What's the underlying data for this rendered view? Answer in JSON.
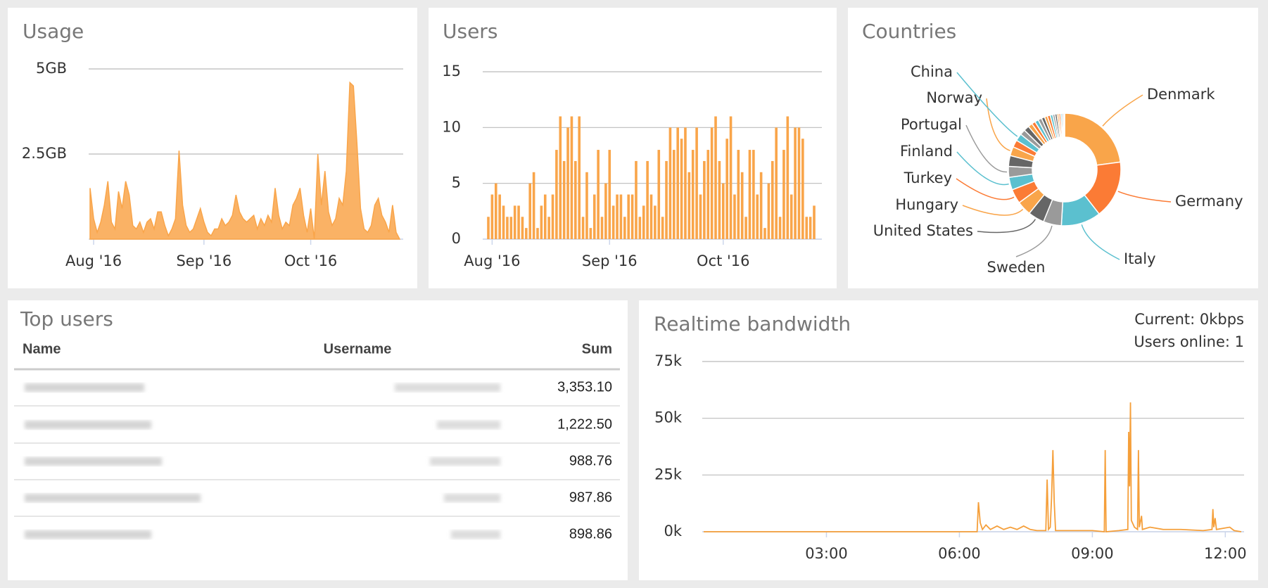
{
  "chart_data": [
    {
      "type": "area",
      "title": "Usage",
      "color": "#f9a54a",
      "grid": true,
      "values": [
        1.5,
        0.6,
        0.2,
        0.5,
        1.0,
        1.7,
        0.5,
        0.3,
        1.4,
        0.9,
        1.7,
        1.3,
        0.4,
        0.3,
        0.5,
        0.2,
        0.5,
        0.6,
        0.3,
        0.8,
        0.8,
        0.4,
        0.1,
        0.3,
        0.6,
        2.6,
        1.0,
        0.4,
        0.2,
        0.3,
        0.6,
        0.9,
        0.5,
        0.2,
        0.1,
        0.3,
        0.3,
        0.6,
        0.4,
        0.5,
        0.7,
        1.3,
        0.8,
        0.6,
        0.5,
        0.6,
        0.7,
        0.3,
        0.6,
        0.4,
        0.7,
        0.5,
        1.5,
        0.7,
        0.3,
        0.5,
        0.4,
        1.0,
        1.2,
        1.5,
        0.7,
        0.2,
        0.9,
        0.0,
        2.5,
        1.0,
        2.0,
        0.8,
        0.4,
        0.6,
        1.2,
        1.0,
        2.0,
        4.6,
        4.5,
        2.8,
        0.9,
        0.3,
        0.2,
        0.4,
        1.0,
        1.2,
        0.7,
        0.5,
        0.2,
        1.0,
        0.2,
        0.0
      ],
      "xlim": [
        0,
        87
      ],
      "xticks": [
        {
          "value": 1,
          "label": "Aug '16"
        },
        {
          "value": 32,
          "label": "Sep '16"
        },
        {
          "value": 62,
          "label": "Oct '16"
        }
      ],
      "ylim": [
        0,
        5
      ],
      "yticks": [
        {
          "value": 2.5,
          "label": "2.5GB"
        },
        {
          "value": 5,
          "label": "5GB"
        }
      ]
    },
    {
      "type": "bar",
      "title": "Users",
      "color": "#f9a54a",
      "grid": true,
      "values": [
        2,
        4,
        5,
        4,
        3,
        2,
        2,
        3,
        3,
        2,
        1,
        5,
        6,
        1,
        3,
        4,
        2,
        4,
        8,
        11,
        7,
        10,
        11,
        7,
        11,
        2,
        6,
        1,
        4,
        8,
        2,
        5,
        8,
        3,
        4,
        4,
        2,
        4,
        4,
        7,
        2,
        3,
        7,
        4,
        3,
        8,
        2,
        7,
        10,
        8,
        10,
        9,
        10,
        6,
        8,
        10,
        4,
        7,
        8,
        10,
        11,
        7,
        5,
        9,
        11,
        4,
        8,
        6,
        2,
        8,
        8,
        4,
        6,
        1,
        5,
        7,
        10,
        2,
        8,
        11,
        4,
        10,
        10,
        9,
        2,
        2,
        3
      ],
      "xlim": [
        0,
        86
      ],
      "xticks": [
        {
          "value": 1,
          "label": "Aug '16"
        },
        {
          "value": 32,
          "label": "Sep '16"
        },
        {
          "value": 62,
          "label": "Oct '16"
        }
      ],
      "ylim": [
        0,
        15
      ],
      "yticks": [
        0,
        5,
        10,
        15
      ]
    },
    {
      "type": "donut",
      "title": "Countries",
      "colors": [
        "#f9a54a",
        "#fb7b35",
        "#5bc0cf",
        "#9a9a9a",
        "#666666"
      ],
      "categories": [
        "Denmark",
        "Germany",
        "Italy",
        "Sweden",
        "United States",
        "Hungary",
        "Turkey",
        "Finland",
        "Portugal",
        null,
        "Norway",
        null,
        "China",
        null,
        null,
        null,
        null,
        null,
        null,
        null,
        null,
        null,
        null,
        null,
        null,
        null,
        null,
        null,
        null,
        null
      ],
      "values": [
        22,
        16,
        11,
        5,
        4.5,
        4,
        4,
        3.5,
        3,
        3,
        2.5,
        2,
        2,
        1.5,
        1.5,
        1.2,
        1,
        1,
        1,
        0.9,
        0.8,
        0.8,
        0.7,
        0.6,
        0.6,
        0.5,
        0.5,
        0.4,
        0.4,
        0.3
      ]
    },
    {
      "type": "line",
      "title": "Realtime bandwidth",
      "annotations": [
        "Current: 0kbps",
        "Users online: 1"
      ],
      "color": "#f59f3a",
      "grid": true,
      "x": [
        0.23,
        6.4,
        6.43,
        6.47,
        6.52,
        6.6,
        6.7,
        6.85,
        7.0,
        7.15,
        7.3,
        7.45,
        7.6,
        7.75,
        7.95,
        7.98,
        8.01,
        8.05,
        8.08,
        8.11,
        8.14,
        8.17,
        8.6,
        9.0,
        9.27,
        9.29,
        9.31,
        9.6,
        9.8,
        9.82,
        9.84,
        9.86,
        9.88,
        9.95,
        10.02,
        10.04,
        10.06,
        10.11,
        10.13,
        10.3,
        10.6,
        11.0,
        11.5,
        11.7,
        11.72,
        11.74,
        11.77,
        11.8,
        12.1,
        12.2,
        12.36
      ],
      "values": [
        0,
        0,
        13000,
        4000,
        1000,
        3000,
        1000,
        2500,
        1000,
        2000,
        1000,
        2500,
        1000,
        500,
        500,
        23000,
        1000,
        2000,
        15000,
        36000,
        13000,
        500,
        500,
        500,
        0,
        36000,
        0,
        500,
        1000,
        44000,
        20000,
        57000,
        5000,
        2000,
        1000,
        36000,
        2000,
        7000,
        1000,
        2000,
        1000,
        1000,
        500,
        1000,
        10000,
        2000,
        6000,
        1000,
        2000,
        500,
        0
      ],
      "xlim": [
        0.23,
        12.36
      ],
      "xticks": [
        {
          "value": 3,
          "label": "03:00"
        },
        {
          "value": 6,
          "label": "06:00"
        },
        {
          "value": 9,
          "label": "09:00"
        },
        {
          "value": 12,
          "label": "12:00"
        }
      ],
      "ylim": [
        0,
        75000
      ],
      "yticks": [
        {
          "value": 0,
          "label": "0k"
        },
        {
          "value": 25000,
          "label": "25k"
        },
        {
          "value": 50000,
          "label": "50k"
        },
        {
          "value": 75000,
          "label": "75k"
        }
      ]
    }
  ],
  "top_users": {
    "title": "Top users",
    "columns": [
      "Name",
      "Username",
      "Sum"
    ],
    "sums": [
      "3,353.10",
      "1,222.50",
      "988.76",
      "987.86",
      "898.86"
    ]
  }
}
